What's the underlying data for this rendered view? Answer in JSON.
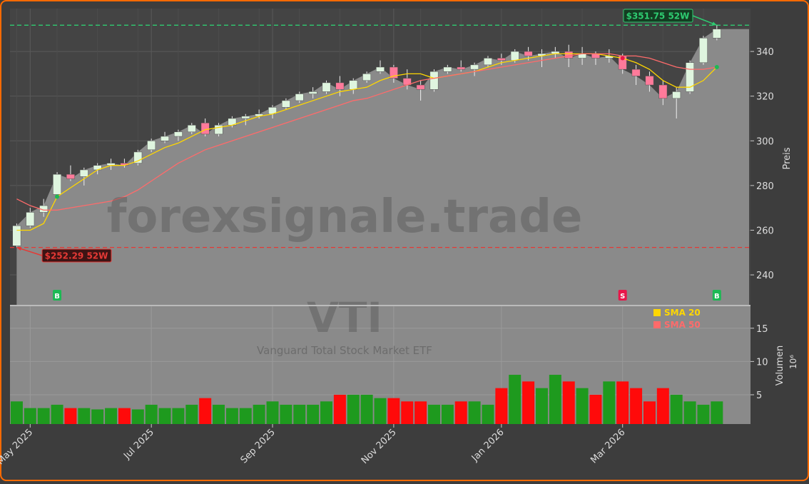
{
  "watermark": "forexsignale.trade",
  "symbol": "VTI",
  "name": "Vanguard Total Stock Market ETF",
  "chart_data": [
    {
      "type": "candlestick",
      "ylabel": "Preis",
      "ylim": [
        226.6,
        359.2
      ],
      "yticks": [
        240,
        260,
        280,
        300,
        320,
        340
      ],
      "grid": true,
      "open": [
        253,
        262,
        268,
        276,
        285,
        284,
        287,
        289,
        290,
        290,
        296,
        300,
        302,
        304,
        308,
        303,
        307,
        310,
        311,
        312,
        315,
        318,
        321,
        322,
        326,
        323,
        327,
        331,
        333,
        328,
        325,
        323,
        331,
        333,
        332,
        334,
        337,
        336,
        340,
        338,
        339,
        340,
        337,
        339,
        337,
        338,
        332,
        329,
        325,
        319,
        322,
        335,
        346
      ],
      "high": [
        263,
        270,
        274,
        286,
        289,
        288,
        290,
        292,
        292,
        296,
        301,
        304,
        305,
        308,
        310,
        308,
        311,
        312,
        314,
        316,
        319,
        322,
        324,
        327,
        329,
        328,
        331,
        336,
        334,
        332,
        327,
        332,
        334,
        336,
        335,
        338,
        339,
        341,
        342,
        341,
        342,
        343,
        342,
        340,
        341,
        339,
        334,
        331,
        327,
        324,
        336,
        347,
        351.75
      ],
      "low": [
        252.29,
        261,
        266,
        275,
        282,
        280,
        285,
        287,
        288,
        289,
        295,
        299,
        300,
        303,
        302,
        302,
        306,
        307,
        310,
        310,
        314,
        317,
        319,
        321,
        320,
        321,
        326,
        330,
        326,
        323,
        318,
        322,
        330,
        331,
        329,
        333,
        334,
        335,
        336,
        333,
        337,
        333,
        334,
        334,
        335,
        330,
        325,
        322,
        316,
        310,
        321,
        334,
        345
      ],
      "close": [
        262,
        268,
        271,
        285,
        283,
        287,
        289,
        290,
        289,
        295,
        300,
        302,
        304,
        307,
        303,
        307,
        310,
        311,
        312,
        315,
        318,
        321,
        322,
        326,
        323,
        327,
        330,
        333,
        328,
        325,
        323,
        331,
        333,
        332,
        334,
        337,
        336,
        340,
        338,
        339,
        340,
        337,
        339,
        337,
        338,
        332,
        329,
        325,
        319,
        322,
        335,
        346,
        350
      ],
      "up_color": "#dff5df",
      "down_color": "#ff7a9a",
      "area_color": "#8a8a8a",
      "series": [
        {
          "name": "SMA 20",
          "color": "#ffd700",
          "values": [
            260,
            260,
            263,
            275,
            279,
            283,
            287,
            289,
            289,
            291,
            294,
            297,
            299,
            302,
            305,
            306,
            307,
            309,
            311,
            312,
            314,
            316,
            318,
            320,
            322,
            323,
            324,
            327,
            329,
            330,
            330,
            328,
            329,
            330,
            331,
            333,
            335,
            336,
            337,
            338,
            339,
            339,
            339,
            339,
            338,
            337,
            335,
            332,
            327,
            324,
            324,
            327,
            333
          ]
        },
        {
          "name": "SMA 50",
          "color": "#ff6b6b",
          "values": [
            274,
            271,
            269,
            269,
            270,
            271,
            272,
            273,
            275,
            278,
            282,
            286,
            290,
            293,
            296,
            298,
            300,
            302,
            304,
            306,
            308,
            310,
            312,
            314,
            316,
            318,
            319,
            321,
            323,
            325,
            327,
            328,
            329,
            330,
            331,
            332,
            333,
            334,
            335,
            336,
            337,
            338,
            339,
            339,
            339,
            338,
            338,
            337,
            335,
            333,
            332,
            332,
            333
          ]
        }
      ],
      "lines": [
        {
          "value": 351.75,
          "label": "$351.75 52W",
          "color": "#2ecc71",
          "index": 52
        },
        {
          "value": 252.29,
          "label": "$252.29 52W",
          "color": "#e53935",
          "index": 0
        }
      ],
      "signals": [
        {
          "label": "B",
          "index": 3,
          "color": "#1db954"
        },
        {
          "label": "S",
          "index": 45,
          "color": "#e8174a"
        },
        {
          "label": "B",
          "index": 52,
          "color": "#1db954"
        }
      ],
      "legend": "upper right"
    },
    {
      "type": "bar",
      "ylabel": "Volumen",
      "yunit": "10⁶",
      "ylim": [
        0.6,
        18.3
      ],
      "yticks": [
        5,
        10,
        15
      ],
      "grid": true,
      "up_color": "#1e9a1e",
      "down_color": "#ff0a0a",
      "categories": [
        null,
        "May 2025",
        null,
        null,
        null,
        null,
        null,
        null,
        null,
        null,
        "Jul 2025",
        null,
        null,
        null,
        null,
        null,
        null,
        null,
        null,
        "Sep 2025",
        null,
        null,
        null,
        null,
        null,
        null,
        null,
        null,
        "Nov 2025",
        null,
        null,
        null,
        null,
        null,
        null,
        null,
        "Jan 2026",
        null,
        null,
        null,
        null,
        null,
        null,
        null,
        null,
        "Mar 2026",
        null,
        null,
        null,
        null,
        null,
        null,
        null
      ],
      "values": [
        4,
        3,
        3,
        3.5,
        3,
        3,
        2.8,
        3,
        3,
        2.8,
        3.5,
        3,
        3,
        3.5,
        4.5,
        3.5,
        3,
        3,
        3.5,
        4,
        3.5,
        3.5,
        3.5,
        4,
        5,
        5,
        5,
        4.5,
        4.5,
        4,
        4,
        3.5,
        3.5,
        4,
        4,
        3.5,
        6,
        8,
        7,
        6,
        8,
        7,
        6,
        5,
        7,
        7,
        6,
        4,
        6,
        5,
        4,
        3.5,
        4
      ]
    }
  ]
}
